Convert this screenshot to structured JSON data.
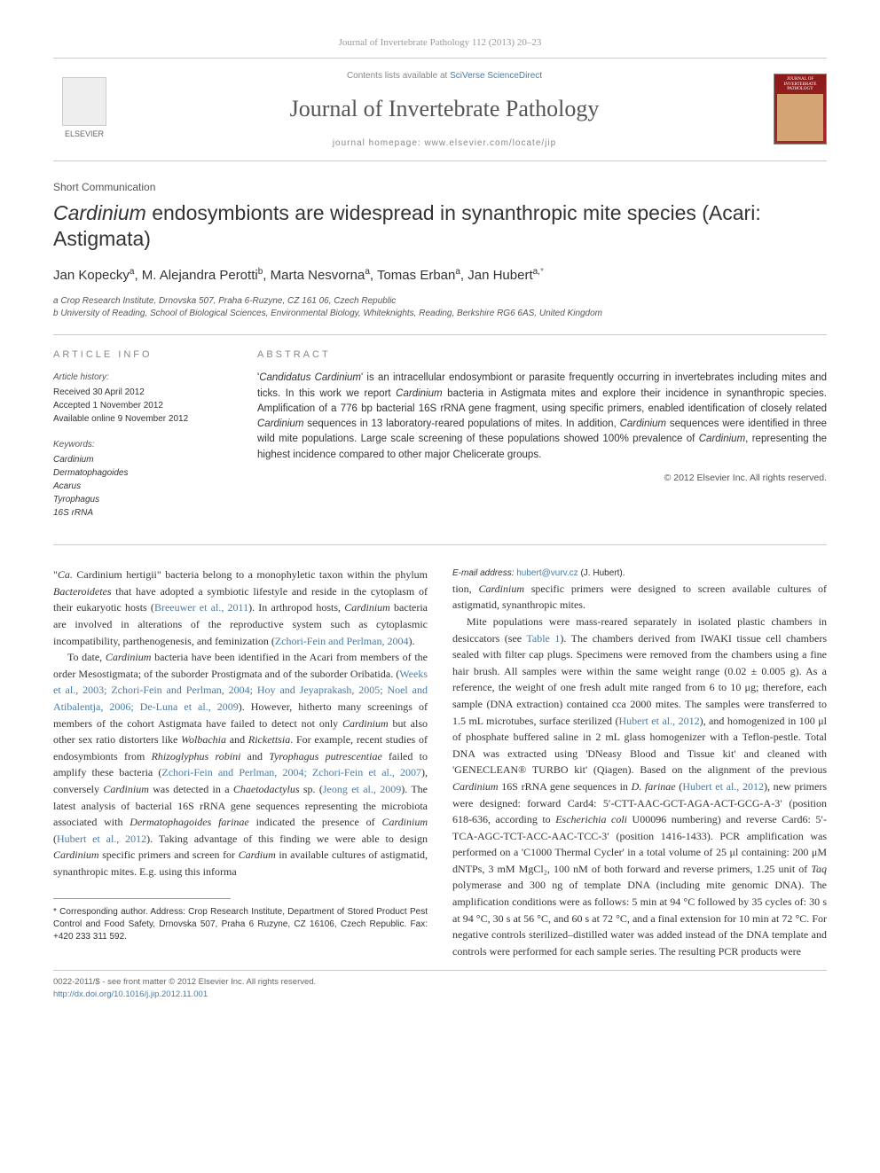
{
  "header": {
    "journal_ref": "Journal of Invertebrate Pathology 112 (2013) 20–23",
    "contents_prefix": "Contents lists available at ",
    "contents_link": "SciVerse ScienceDirect",
    "journal_title": "Journal of Invertebrate Pathology",
    "homepage_prefix": "journal homepage: ",
    "homepage_url": "www.elsevier.com/locate/jip",
    "publisher_name": "ELSEVIER",
    "cover_label1": "JOURNAL OF",
    "cover_label2": "INVERTEBRATE",
    "cover_label3": "PATHOLOGY"
  },
  "article": {
    "type": "Short Communication",
    "title_pre": "",
    "title_italic1": "Cardinium",
    "title_mid": " endosymbionts are widespread in synanthropic mite species (Acari: Astigmata)",
    "authors_html": "Jan Kopecky",
    "author1": "Jan Kopecky",
    "author1_aff": "a",
    "author2": "M. Alejandra Perotti",
    "author2_aff": "b",
    "author3": "Marta Nesvorna",
    "author3_aff": "a",
    "author4": "Tomas Erban",
    "author4_aff": "a",
    "author5": "Jan Hubert",
    "author5_aff": "a,",
    "author5_corr": "*",
    "aff_a": "a Crop Research Institute, Drnovska 507, Praha 6-Ruzyne, CZ 161 06, Czech Republic",
    "aff_b": "b University of Reading, School of Biological Sciences, Environmental Biology, Whiteknights, Reading, Berkshire RG6 6AS, United Kingdom"
  },
  "info": {
    "heading": "ARTICLE INFO",
    "history_label": "Article history:",
    "received": "Received 30 April 2012",
    "accepted": "Accepted 1 November 2012",
    "online": "Available online 9 November 2012",
    "keywords_label": "Keywords:",
    "keywords": [
      "Cardinium",
      "Dermatophagoides",
      "Acarus",
      "Tyrophagus",
      "16S rRNA"
    ]
  },
  "abstract": {
    "heading": "ABSTRACT",
    "text_parts": [
      {
        "t": "'",
        "i": false
      },
      {
        "t": "Candidatus Cardinium",
        "i": true
      },
      {
        "t": "' is an intracellular endosymbiont or parasite frequently occurring in invertebrates including mites and ticks. In this work we report ",
        "i": false
      },
      {
        "t": "Cardinium",
        "i": true
      },
      {
        "t": " bacteria in Astigmata mites and explore their incidence in synanthropic species. Amplification of a 776 bp bacterial 16S rRNA gene fragment, using specific primers, enabled identification of closely related ",
        "i": false
      },
      {
        "t": "Cardinium",
        "i": true
      },
      {
        "t": " sequences in 13 laboratory-reared populations of mites. In addition, ",
        "i": false
      },
      {
        "t": "Cardinium",
        "i": true
      },
      {
        "t": " sequences were identified in three wild mite populations. Large scale screening of these populations showed 100% prevalence of ",
        "i": false
      },
      {
        "t": "Cardinium",
        "i": true
      },
      {
        "t": ", representing the highest incidence compared to other major Chelicerate groups.",
        "i": false
      }
    ],
    "copyright": "© 2012 Elsevier Inc. All rights reserved."
  },
  "body": {
    "p1_parts": [
      {
        "t": "\"",
        "i": false
      },
      {
        "t": "Ca.",
        "i": true
      },
      {
        "t": " Cardinium hertigii\" bacteria belong to a monophyletic taxon within the phylum ",
        "i": false
      },
      {
        "t": "Bacteroidetes",
        "i": true
      },
      {
        "t": " that have adopted a symbiotic lifestyle and reside in the cytoplasm of their eukaryotic hosts (",
        "i": false
      },
      {
        "t": "Breeuwer et al., 2011",
        "i": false,
        "link": true
      },
      {
        "t": "). In arthropod hosts, ",
        "i": false
      },
      {
        "t": "Cardinium",
        "i": true
      },
      {
        "t": " bacteria are involved in alterations of the reproductive system such as cytoplasmic incompatibility, parthenogenesis, and feminization (",
        "i": false
      },
      {
        "t": "Zchori-Fein and Perlman, 2004",
        "i": false,
        "link": true
      },
      {
        "t": ").",
        "i": false
      }
    ],
    "p2_parts": [
      {
        "t": "To date, ",
        "i": false
      },
      {
        "t": "Cardinium",
        "i": true
      },
      {
        "t": " bacteria have been identified in the Acari from members of the order Mesostigmata; of the suborder Prostigmata and of the suborder Oribatida. (",
        "i": false
      },
      {
        "t": "Weeks et al., 2003; Zchori-Fein and Perlman, 2004; Hoy and Jeyaprakash, 2005; Noel and Atibalentja, 2006; De-Luna et al., 2009",
        "i": false,
        "link": true
      },
      {
        "t": "). However, hitherto many screenings of members of the cohort Astigmata have failed to detect not only ",
        "i": false
      },
      {
        "t": "Cardinium",
        "i": true
      },
      {
        "t": " but also other sex ratio distorters like ",
        "i": false
      },
      {
        "t": "Wolbachia",
        "i": true
      },
      {
        "t": " and ",
        "i": false
      },
      {
        "t": "Rickettsia",
        "i": true
      },
      {
        "t": ". For example, recent studies of endosymbionts from ",
        "i": false
      },
      {
        "t": "Rhizoglyphus robini",
        "i": true
      },
      {
        "t": " and ",
        "i": false
      },
      {
        "t": "Tyrophagus putrescentiae",
        "i": true
      },
      {
        "t": " failed to amplify these bacteria (",
        "i": false
      },
      {
        "t": "Zchori-Fein and Perlman, 2004; Zchori-Fein et al., 2007",
        "i": false,
        "link": true
      },
      {
        "t": "), conversely ",
        "i": false
      },
      {
        "t": "Cardinium",
        "i": true
      },
      {
        "t": " was detected in a ",
        "i": false
      },
      {
        "t": "Chaetodactylus",
        "i": true
      },
      {
        "t": " sp. (",
        "i": false
      },
      {
        "t": "Jeong et al., 2009",
        "i": false,
        "link": true
      },
      {
        "t": "). The latest analysis of bacterial 16S rRNA gene sequences representing the microbiota associated with ",
        "i": false
      },
      {
        "t": "Dermatophagoides farinae",
        "i": true
      },
      {
        "t": " indicated the presence of ",
        "i": false
      },
      {
        "t": "Cardinium",
        "i": true
      },
      {
        "t": " (",
        "i": false
      },
      {
        "t": "Hubert et al., 2012",
        "i": false,
        "link": true
      },
      {
        "t": "). Taking advantage of this finding we were able to design ",
        "i": false
      },
      {
        "t": "Cardinium",
        "i": true
      },
      {
        "t": " specific primers and screen for ",
        "i": false
      },
      {
        "t": "Cardium",
        "i": true
      },
      {
        "t": " in available cultures of astigmatid, synanthropic mites. E.g. using this informa",
        "i": false
      }
    ],
    "p3_parts": [
      {
        "t": "tion, ",
        "i": false
      },
      {
        "t": "Cardinium",
        "i": true
      },
      {
        "t": " specific primers were designed to screen available cultures of astigmatid, synanthropic mites.",
        "i": false
      }
    ],
    "p4_parts": [
      {
        "t": "Mite populations were mass-reared separately in isolated plastic chambers in desiccators (see ",
        "i": false
      },
      {
        "t": "Table 1",
        "i": false,
        "link": true
      },
      {
        "t": "). The chambers derived from IWAKI tissue cell chambers sealed with filter cap plugs. Specimens were removed from the chambers using a fine hair brush. All samples were within the same weight range (0.02 ± 0.005 g). As a reference, the weight of one fresh adult mite ranged from 6 to 10 μg; therefore, each sample (DNA extraction) contained cca 2000 mites. The samples were transferred to 1.5 mL microtubes, surface sterilized (",
        "i": false
      },
      {
        "t": "Hubert et al., 2012",
        "i": false,
        "link": true
      },
      {
        "t": "), and homogenized in 100 μl of phosphate buffered saline in 2 mL glass homogenizer with a Teflon-pestle. Total DNA was extracted using 'DNeasy Blood and Tissue kit' and cleaned with 'GENECLEAN® TURBO kit' (Qiagen). Based on the alignment of the previous ",
        "i": false
      },
      {
        "t": "Cardinium",
        "i": true
      },
      {
        "t": " 16S rRNA gene sequences in ",
        "i": false
      },
      {
        "t": "D. farinae",
        "i": true
      },
      {
        "t": " (",
        "i": false
      },
      {
        "t": "Hubert et al., 2012",
        "i": false,
        "link": true
      },
      {
        "t": "), new primers were designed: forward Card4: 5′-CTT-AAC-GCT-AGA-ACT-GCG-A-3′ (position 618-636, according to ",
        "i": false
      },
      {
        "t": "Escherichia coli",
        "i": true
      },
      {
        "t": " U00096 numbering) and reverse Card6: 5′-TCA-AGC-TCT-ACC-AAC-TCC-3′ (position 1416-1433). PCR amplification was performed on a 'C1000 Thermal Cycler' in a total volume of 25 μl containing: 200 μM dNTPs, 3 mM MgCl₂, 100 nM of both forward and reverse primers, 1.25 unit of ",
        "i": false
      },
      {
        "t": "Taq",
        "i": true
      },
      {
        "t": " polymerase and 300 ng of template DNA (including mite genomic DNA). The amplification conditions were as follows: 5 min at 94 °C followed by 35 cycles of: 30 s at 94 °C, 30 s at 56 °C, and 60 s at 72 °C, and a final extension for 10 min at 72 °C. For negative controls sterilized–distilled water was added instead of the DNA template and controls were performed for each sample series. The resulting PCR products were",
        "i": false
      }
    ]
  },
  "footer": {
    "corr_label": "* Corresponding author. Address: Crop Research Institute, Department of Stored Product Pest Control and Food Safety, Drnovska 507, Praha 6 Ruzyne, CZ 16106, Czech Republic. Fax: +420 233 311 592.",
    "email_label": "E-mail address:",
    "email": "hubert@vurv.cz",
    "email_suffix": " (J. Hubert).",
    "issn_line": "0022-2011/$ - see front matter © 2012 Elsevier Inc. All rights reserved.",
    "doi_line": "http://dx.doi.org/10.1016/j.jip.2012.11.001"
  },
  "colors": {
    "link": "#4a7ba6",
    "text": "#333333",
    "muted": "#888888",
    "border": "#cccccc",
    "cover_bg": "#8b1a1a"
  }
}
